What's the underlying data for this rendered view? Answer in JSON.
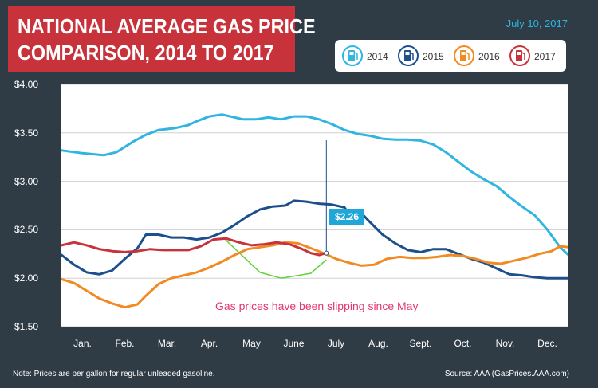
{
  "header": {
    "title_line1": "NATIONAL AVERAGE GAS PRICE",
    "title_line2": "COMPARISON, 2014 TO 2017",
    "date": "July 10, 2017"
  },
  "legend": {
    "items": [
      {
        "label": "2014",
        "color": "#2fb5e0",
        "icon": "gas-pump-icon"
      },
      {
        "label": "2015",
        "color": "#1c4f8c",
        "icon": "gas-pump-icon"
      },
      {
        "label": "2016",
        "color": "#f28a22",
        "icon": "gas-pump-icon"
      },
      {
        "label": "2017",
        "color": "#c8323b",
        "icon": "gas-pump-icon"
      }
    ]
  },
  "footer": {
    "note": "Note: Prices are per gallon for regular unleaded gasoline.",
    "source": "Source: AAA (GasPrices.AAA.com)"
  },
  "chart_data": {
    "type": "line",
    "title": "NATIONAL AVERAGE GAS PRICE COMPARISON, 2014 TO 2017",
    "xlabel": "",
    "ylabel": "",
    "x_unit": "month",
    "xlim": [
      0,
      12
    ],
    "ylim": [
      1.5,
      4.0
    ],
    "y_ticks": [
      "$4.00",
      "$3.50",
      "$3.00",
      "$2.50",
      "$2.00",
      "$1.50"
    ],
    "y_tick_values": [
      4.0,
      3.5,
      3.0,
      2.5,
      2.0,
      1.5
    ],
    "x_ticks": [
      "Jan.",
      "Feb.",
      "Mar.",
      "Apr.",
      "May",
      "June",
      "July",
      "Aug.",
      "Sept.",
      "Oct.",
      "Nov.",
      "Dec."
    ],
    "grid": true,
    "legend_position": "top-right",
    "annotation": "Gas prices have been slipping since May",
    "callout": {
      "text": "$2.26",
      "x": 6.27,
      "y": 2.26
    },
    "trend_arc": {
      "color": "#5fd13a",
      "points": [
        [
          3.85,
          2.41
        ],
        [
          4.7,
          2.06
        ],
        [
          5.2,
          2.0
        ],
        [
          5.9,
          2.05
        ],
        [
          6.27,
          2.19
        ]
      ]
    },
    "series": [
      {
        "name": "2014",
        "color": "#2fb5e0",
        "x": [
          0,
          0.5,
          1.0,
          1.3,
          1.7,
          2.0,
          2.3,
          2.7,
          3.0,
          3.2,
          3.5,
          3.8,
          4.0,
          4.3,
          4.6,
          4.9,
          5.2,
          5.5,
          5.8,
          6.1,
          6.4,
          6.7,
          7.0,
          7.3,
          7.6,
          7.9,
          8.2,
          8.5,
          8.8,
          9.1,
          9.4,
          9.7,
          10.0,
          10.3,
          10.6,
          10.9,
          11.2,
          11.5,
          11.8,
          12.0
        ],
        "values": [
          3.32,
          3.29,
          3.27,
          3.3,
          3.41,
          3.48,
          3.53,
          3.55,
          3.58,
          3.62,
          3.67,
          3.69,
          3.67,
          3.64,
          3.64,
          3.66,
          3.64,
          3.67,
          3.67,
          3.64,
          3.59,
          3.53,
          3.49,
          3.47,
          3.44,
          3.43,
          3.43,
          3.42,
          3.38,
          3.3,
          3.2,
          3.1,
          3.02,
          2.95,
          2.84,
          2.74,
          2.65,
          2.5,
          2.32,
          2.24
        ]
      },
      {
        "name": "2015",
        "color": "#1c4f8c",
        "x": [
          0,
          0.3,
          0.6,
          0.9,
          1.2,
          1.5,
          1.8,
          2.0,
          2.3,
          2.6,
          2.9,
          3.2,
          3.5,
          3.8,
          4.1,
          4.4,
          4.7,
          5.0,
          5.3,
          5.5,
          5.8,
          6.1,
          6.4,
          6.7,
          6.9,
          7.1,
          7.3,
          7.6,
          7.9,
          8.2,
          8.5,
          8.8,
          9.1,
          9.4,
          9.7,
          10.0,
          10.3,
          10.6,
          10.9,
          11.2,
          11.5,
          11.8,
          12.0
        ],
        "values": [
          2.24,
          2.14,
          2.06,
          2.04,
          2.08,
          2.2,
          2.31,
          2.45,
          2.45,
          2.42,
          2.42,
          2.4,
          2.42,
          2.47,
          2.55,
          2.64,
          2.71,
          2.74,
          2.75,
          2.8,
          2.79,
          2.77,
          2.76,
          2.73,
          2.6,
          2.67,
          2.58,
          2.45,
          2.36,
          2.29,
          2.27,
          2.3,
          2.3,
          2.25,
          2.2,
          2.16,
          2.1,
          2.04,
          2.03,
          2.01,
          2.0,
          2.0,
          2.0
        ]
      },
      {
        "name": "2016",
        "color": "#f28a22",
        "x": [
          0,
          0.3,
          0.6,
          0.9,
          1.2,
          1.5,
          1.8,
          2.0,
          2.3,
          2.6,
          2.9,
          3.2,
          3.5,
          3.8,
          4.1,
          4.4,
          4.7,
          5.0,
          5.3,
          5.6,
          5.9,
          6.2,
          6.5,
          6.8,
          7.1,
          7.4,
          7.7,
          8.0,
          8.3,
          8.6,
          8.9,
          9.2,
          9.5,
          9.8,
          10.1,
          10.4,
          10.7,
          11.0,
          11.3,
          11.6,
          11.8,
          12.0
        ],
        "values": [
          1.99,
          1.95,
          1.87,
          1.79,
          1.74,
          1.7,
          1.73,
          1.82,
          1.94,
          2.0,
          2.03,
          2.06,
          2.11,
          2.17,
          2.24,
          2.3,
          2.32,
          2.34,
          2.37,
          2.36,
          2.31,
          2.26,
          2.2,
          2.16,
          2.13,
          2.14,
          2.2,
          2.22,
          2.21,
          2.21,
          2.22,
          2.24,
          2.23,
          2.2,
          2.16,
          2.15,
          2.18,
          2.21,
          2.25,
          2.28,
          2.33,
          2.32
        ]
      },
      {
        "name": "2017",
        "color": "#c8323b",
        "x": [
          0,
          0.3,
          0.6,
          0.9,
          1.2,
          1.5,
          1.8,
          2.1,
          2.4,
          2.7,
          3.0,
          3.3,
          3.6,
          3.9,
          4.2,
          4.5,
          4.8,
          5.1,
          5.4,
          5.7,
          5.9,
          6.1,
          6.27
        ],
        "values": [
          2.34,
          2.37,
          2.34,
          2.3,
          2.28,
          2.27,
          2.28,
          2.3,
          2.29,
          2.29,
          2.29,
          2.33,
          2.4,
          2.41,
          2.37,
          2.34,
          2.35,
          2.37,
          2.35,
          2.3,
          2.26,
          2.24,
          2.26
        ]
      }
    ]
  }
}
